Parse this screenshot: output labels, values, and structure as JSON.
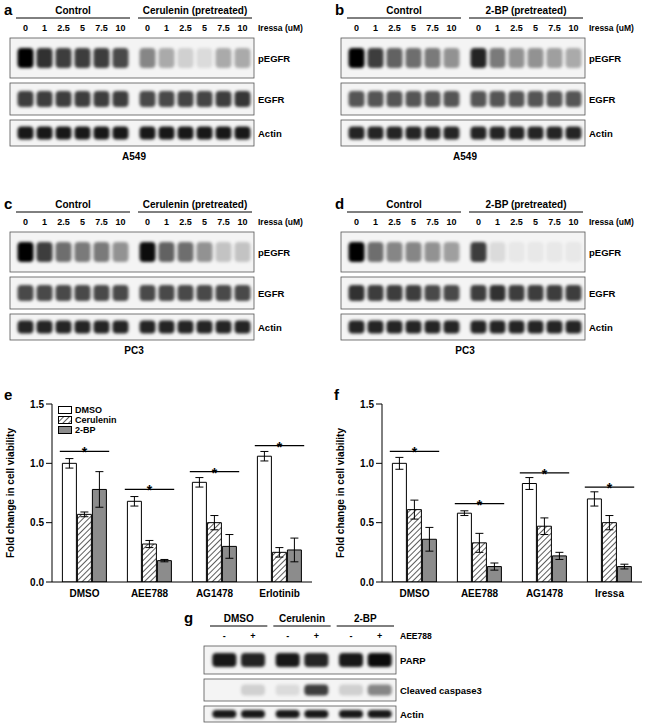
{
  "blots": [
    {
      "panel": "a",
      "groups": [
        "Control",
        "Cerulenin (pretreated)"
      ],
      "dose_label": "Iressa (uM)",
      "doses": [
        "0",
        "1",
        "2.5",
        "5",
        "7.5",
        "10",
        "0",
        "1",
        "2.5",
        "5",
        "7.5",
        "10"
      ],
      "rows": [
        {
          "label": "pEGFR",
          "intensity": [
            1,
            0.8,
            0.75,
            0.75,
            0.75,
            0.7,
            0.45,
            0.3,
            0.15,
            0.1,
            0.3,
            0.3
          ]
        },
        {
          "label": "EGFR",
          "intensity": [
            0.75,
            0.75,
            0.75,
            0.75,
            0.75,
            0.75,
            0.7,
            0.7,
            0.72,
            0.72,
            0.75,
            0.78
          ]
        },
        {
          "label": "Actin",
          "intensity": [
            0.9,
            0.9,
            0.9,
            0.9,
            0.9,
            0.9,
            0.9,
            0.9,
            0.9,
            0.9,
            0.9,
            0.9
          ]
        }
      ],
      "cell_line": "A549"
    },
    {
      "panel": "b",
      "groups": [
        "Control",
        "2-BP (pretreated)"
      ],
      "dose_label": "Iressa (uM)",
      "doses": [
        "0",
        "1",
        "2.5",
        "5",
        "7.5",
        "10",
        "0",
        "1",
        "2.5",
        "5",
        "7.5",
        "10"
      ],
      "rows": [
        {
          "label": "pEGFR",
          "intensity": [
            1,
            0.75,
            0.6,
            0.55,
            0.5,
            0.4,
            0.85,
            0.5,
            0.4,
            0.4,
            0.35,
            0.3
          ]
        },
        {
          "label": "EGFR",
          "intensity": [
            0.65,
            0.65,
            0.65,
            0.65,
            0.65,
            0.65,
            0.65,
            0.65,
            0.65,
            0.65,
            0.65,
            0.65
          ]
        },
        {
          "label": "Actin",
          "intensity": [
            0.85,
            0.85,
            0.85,
            0.85,
            0.85,
            0.85,
            0.85,
            0.85,
            0.85,
            0.85,
            0.85,
            0.85
          ]
        }
      ],
      "cell_line": "A549"
    },
    {
      "panel": "c",
      "groups": [
        "Control",
        "Cerulenin (pretreated)"
      ],
      "dose_label": "Iressa (uM)",
      "doses": [
        "0",
        "1",
        "2.5",
        "5",
        "7.5",
        "10",
        "0",
        "1",
        "2.5",
        "5",
        "7.5",
        "10"
      ],
      "rows": [
        {
          "label": "pEGFR",
          "intensity": [
            1,
            0.75,
            0.55,
            0.5,
            0.5,
            0.4,
            0.95,
            0.6,
            0.55,
            0.4,
            0.2,
            0.2
          ]
        },
        {
          "label": "EGFR",
          "intensity": [
            0.7,
            0.7,
            0.7,
            0.7,
            0.7,
            0.7,
            0.7,
            0.7,
            0.7,
            0.7,
            0.7,
            0.7
          ]
        },
        {
          "label": "Actin",
          "intensity": [
            0.85,
            0.85,
            0.85,
            0.85,
            0.85,
            0.85,
            0.85,
            0.85,
            0.85,
            0.85,
            0.85,
            0.85
          ]
        }
      ],
      "cell_line": "PC3"
    },
    {
      "panel": "d",
      "groups": [
        "Control",
        "2-BP (pretreated)"
      ],
      "dose_label": "Iressa (uM)",
      "doses": [
        "0",
        "1",
        "2.5",
        "5",
        "7.5",
        "10",
        "0",
        "1",
        "2.5",
        "5",
        "7.5",
        "10"
      ],
      "rows": [
        {
          "label": "pEGFR",
          "intensity": [
            1,
            0.55,
            0.45,
            0.45,
            0.4,
            0.35,
            0.75,
            0.1,
            0.05,
            0.05,
            0.05,
            0.05
          ]
        },
        {
          "label": "EGFR",
          "intensity": [
            0.8,
            0.75,
            0.75,
            0.75,
            0.7,
            0.7,
            0.75,
            0.8,
            0.75,
            0.75,
            0.75,
            0.75
          ]
        },
        {
          "label": "Actin",
          "intensity": [
            0.85,
            0.85,
            0.85,
            0.85,
            0.85,
            0.85,
            0.85,
            0.85,
            0.85,
            0.85,
            0.85,
            0.85
          ]
        }
      ],
      "cell_line": "PC3"
    }
  ],
  "panel_g": {
    "panel": "g",
    "groups": [
      "DMSO",
      "Cerulenin",
      "2-BP"
    ],
    "treatment_label": "AEE788",
    "treatment": [
      "-",
      "+",
      "-",
      "+",
      "-",
      "+"
    ],
    "rows": [
      {
        "label": "PARP",
        "intensity": [
          0.9,
          0.85,
          0.9,
          0.85,
          0.9,
          0.95
        ]
      },
      {
        "label": "Cleaved caspase3",
        "intensity": [
          0,
          0.15,
          0.1,
          0.75,
          0.15,
          0.45
        ]
      },
      {
        "label": "Actin",
        "intensity": [
          0.9,
          0.9,
          0.9,
          0.9,
          0.9,
          0.9
        ]
      }
    ]
  },
  "chart_data": [
    {
      "type": "bar",
      "title": "e",
      "ylabel": "Fold change in cell viability",
      "categories": [
        "DMSO",
        "AEE788",
        "AG1478",
        "Erlotinib"
      ],
      "series": [
        {
          "name": "DMSO",
          "color": "#ffffff",
          "values": [
            1.0,
            0.68,
            0.84,
            1.06
          ],
          "errors": [
            0.04,
            0.04,
            0.04,
            0.04
          ]
        },
        {
          "name": "Cerulenin",
          "color": "#333333",
          "line_style": "hatched",
          "values": [
            0.57,
            0.32,
            0.5,
            0.25
          ],
          "errors": [
            0.02,
            0.03,
            0.06,
            0.04
          ]
        },
        {
          "name": "2-BP",
          "color": "#8c8c8c",
          "values": [
            0.78,
            0.18,
            0.3,
            0.27
          ],
          "errors": [
            0.15,
            0.01,
            0.1,
            0.1
          ]
        }
      ],
      "ylim": [
        0,
        1.5
      ],
      "yticks": [
        {
          "value": 0,
          "label": "0.0"
        },
        {
          "value": 0.5,
          "label": "0.5"
        },
        {
          "value": 1,
          "label": "1.0"
        },
        {
          "value": 1.5,
          "label": "1.5"
        }
      ],
      "legend": "upper left",
      "annotations": [
        {
          "category": "DMSO",
          "y": 1.1,
          "label": "*"
        },
        {
          "category": "AEE788",
          "y": 0.78,
          "label": "*"
        },
        {
          "category": "AG1478",
          "y": 0.93,
          "label": "*"
        },
        {
          "category": "Erlotinib",
          "y": 1.15,
          "label": "*"
        }
      ]
    },
    {
      "type": "bar",
      "title": "f",
      "ylabel": "Fold change in cell viability",
      "categories": [
        "DMSO",
        "AEE788",
        "AG1478",
        "Iressa"
      ],
      "series": [
        {
          "name": "DMSO",
          "color": "#ffffff",
          "values": [
            1.0,
            0.58,
            0.83,
            0.7
          ],
          "errors": [
            0.05,
            0.02,
            0.05,
            0.06
          ]
        },
        {
          "name": "Cerulenin",
          "color": "#333333",
          "line_style": "hatched",
          "values": [
            0.61,
            0.33,
            0.47,
            0.5
          ],
          "errors": [
            0.08,
            0.08,
            0.07,
            0.06
          ]
        },
        {
          "name": "2-BP",
          "color": "#8c8c8c",
          "values": [
            0.36,
            0.13,
            0.22,
            0.13
          ],
          "errors": [
            0.1,
            0.03,
            0.03,
            0.02
          ]
        }
      ],
      "ylim": [
        0,
        1.5
      ],
      "yticks": [
        {
          "value": 0,
          "label": "0.0"
        },
        {
          "value": 0.5,
          "label": "0.5"
        },
        {
          "value": 1,
          "label": "1.0"
        },
        {
          "value": 1.5,
          "label": "1.5"
        }
      ],
      "annotations": [
        {
          "category": "DMSO",
          "y": 1.1,
          "label": "*"
        },
        {
          "category": "AEE788",
          "y": 0.66,
          "label": "*"
        },
        {
          "category": "AG1478",
          "y": 0.92,
          "label": "*"
        },
        {
          "category": "Iressa",
          "y": 0.8,
          "label": "*"
        }
      ]
    }
  ]
}
